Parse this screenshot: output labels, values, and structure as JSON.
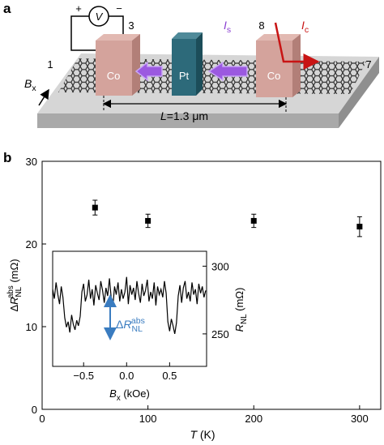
{
  "panel_labels": [
    "a",
    "b"
  ],
  "schematic": {
    "voltmeter": "V",
    "plus": "+",
    "minus": "−",
    "contacts": [
      "1",
      "3",
      "8",
      "7"
    ],
    "electrodes": [
      "Co",
      "Pt",
      "Co"
    ],
    "spin_current": {
      "main": "I",
      "sub": "s"
    },
    "charge_current": {
      "main": "I",
      "sub": "c"
    },
    "field": {
      "main": "B",
      "sub": "x"
    },
    "length": {
      "main": "L",
      "rest": "=1.3 μm"
    }
  },
  "chart_data": [
    {
      "type": "scatter",
      "x": [
        50,
        100,
        200,
        300
      ],
      "values": [
        24.4,
        22.8,
        22.8,
        22.1
      ],
      "errors": [
        0.9,
        0.8,
        0.8,
        1.2
      ],
      "color": "#000000",
      "xlim": [
        0,
        320
      ],
      "xticks": [
        0,
        100,
        200,
        300
      ],
      "ylim": [
        0,
        30
      ],
      "yticks": [
        0,
        10,
        20,
        30
      ],
      "xlabel": {
        "main": "T",
        "unit": " (K)"
      },
      "ylabel": {
        "delta": "Δ",
        "main": "R",
        "sub": "NL",
        "sup": "abs",
        "unit": " (mΩ)"
      }
    },
    {
      "type": "line",
      "x": [
        -0.86,
        -0.84,
        -0.82,
        -0.8,
        -0.78,
        -0.76,
        -0.74,
        -0.72,
        -0.7,
        -0.68,
        -0.66,
        -0.64,
        -0.62,
        -0.6,
        -0.58,
        -0.56,
        -0.54,
        -0.52,
        -0.5,
        -0.48,
        -0.46,
        -0.44,
        -0.42,
        -0.4,
        -0.38,
        -0.36,
        -0.34,
        -0.32,
        -0.3,
        -0.28,
        -0.26,
        -0.24,
        -0.22,
        -0.2,
        -0.18,
        -0.16,
        -0.14,
        -0.12,
        -0.1,
        -0.08,
        -0.06,
        -0.04,
        -0.02,
        0,
        0.02,
        0.04,
        0.06,
        0.08,
        0.1,
        0.12,
        0.14,
        0.16,
        0.18,
        0.2,
        0.22,
        0.24,
        0.26,
        0.28,
        0.3,
        0.32,
        0.34,
        0.36,
        0.38,
        0.4,
        0.42,
        0.44,
        0.46,
        0.48,
        0.5,
        0.52,
        0.54,
        0.56,
        0.58,
        0.6,
        0.62,
        0.64,
        0.66,
        0.68,
        0.7,
        0.72,
        0.74,
        0.76,
        0.78,
        0.8,
        0.82,
        0.84,
        0.86,
        0.88,
        0.9,
        0.92
      ],
      "values": [
        283,
        276,
        288,
        279,
        272,
        285,
        277,
        262,
        255,
        259,
        251,
        264,
        257,
        253,
        260,
        256,
        263,
        281,
        287,
        274,
        279,
        290,
        276,
        283,
        271,
        286,
        280,
        275,
        289,
        282,
        273,
        284,
        278,
        291,
        277,
        270,
        285,
        279,
        288,
        274,
        283,
        276,
        281,
        292,
        272,
        286,
        279,
        284,
        275,
        289,
        280,
        273,
        287,
        278,
        282,
        290,
        274,
        281,
        276,
        288,
        271,
        285,
        279,
        283,
        277,
        289,
        280,
        259,
        252,
        261,
        256,
        250,
        258,
        278,
        286,
        273,
        284,
        289,
        276,
        281,
        274,
        288,
        279,
        283,
        272,
        287,
        280,
        285,
        277,
        282
      ],
      "color": "#000000",
      "xlim": [
        -0.86,
        0.93
      ],
      "xticks": [
        {
          "value": -0.5,
          "label": "−0.5"
        },
        {
          "value": 0,
          "label": "0.0"
        },
        {
          "value": 0.5,
          "label": "0.5"
        }
      ],
      "ylim": [
        226,
        311
      ],
      "yticks": [
        250,
        300
      ],
      "xlabel": {
        "main": "B",
        "sub": "x",
        "unit": " (kOe)"
      },
      "ylabel": {
        "main": "R",
        "sub": "NL",
        "unit": " (mΩ)"
      },
      "annotation": {
        "delta": "Δ",
        "main": "R",
        "sub": "NL",
        "sup": "abs"
      },
      "annotation_color": "#3a7cc0"
    }
  ]
}
